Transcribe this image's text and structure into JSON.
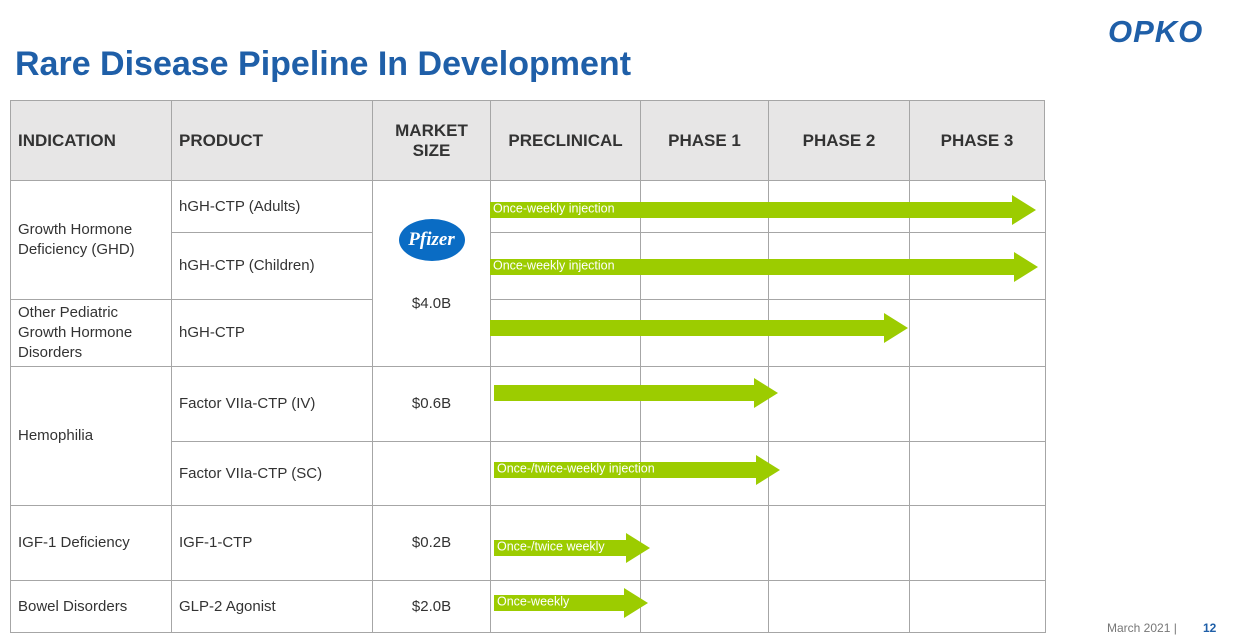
{
  "header": {
    "logo": "OPKO",
    "title": "Rare Disease Pipeline In Development"
  },
  "table": {
    "columns": [
      "INDICATION",
      "PRODUCT",
      "MARKET SIZE",
      "PRECLINICAL",
      "PHASE 1",
      "PHASE 2",
      "PHASE 3"
    ],
    "indications": [
      "Growth Hormone Deficiency (GHD)",
      "Other Pediatric Growth Hormone Disorders",
      "Hemophilia",
      "IGF-1 Deficiency",
      "Bowel Disorders"
    ],
    "products": [
      "hGH-CTP (Adults)",
      "hGH-CTP (Children)",
      "hGH-CTP",
      "Factor VIIa-CTP (IV)",
      "Factor VIIa-CTP (SC)",
      "IGF-1-CTP",
      "GLP-2 Agonist"
    ],
    "partner": "Pfizer",
    "market_sizes": [
      "$4.0B",
      "$0.6B",
      "$0.2B",
      "$2.0B"
    ],
    "arrow_labels": [
      "Once-weekly injection",
      "Once-weekly injection",
      "Once-/twice-weekly injection",
      "Once-/twice weekly",
      "Once-weekly"
    ]
  },
  "footer": {
    "date": "March 2021 |",
    "page": "12"
  }
}
